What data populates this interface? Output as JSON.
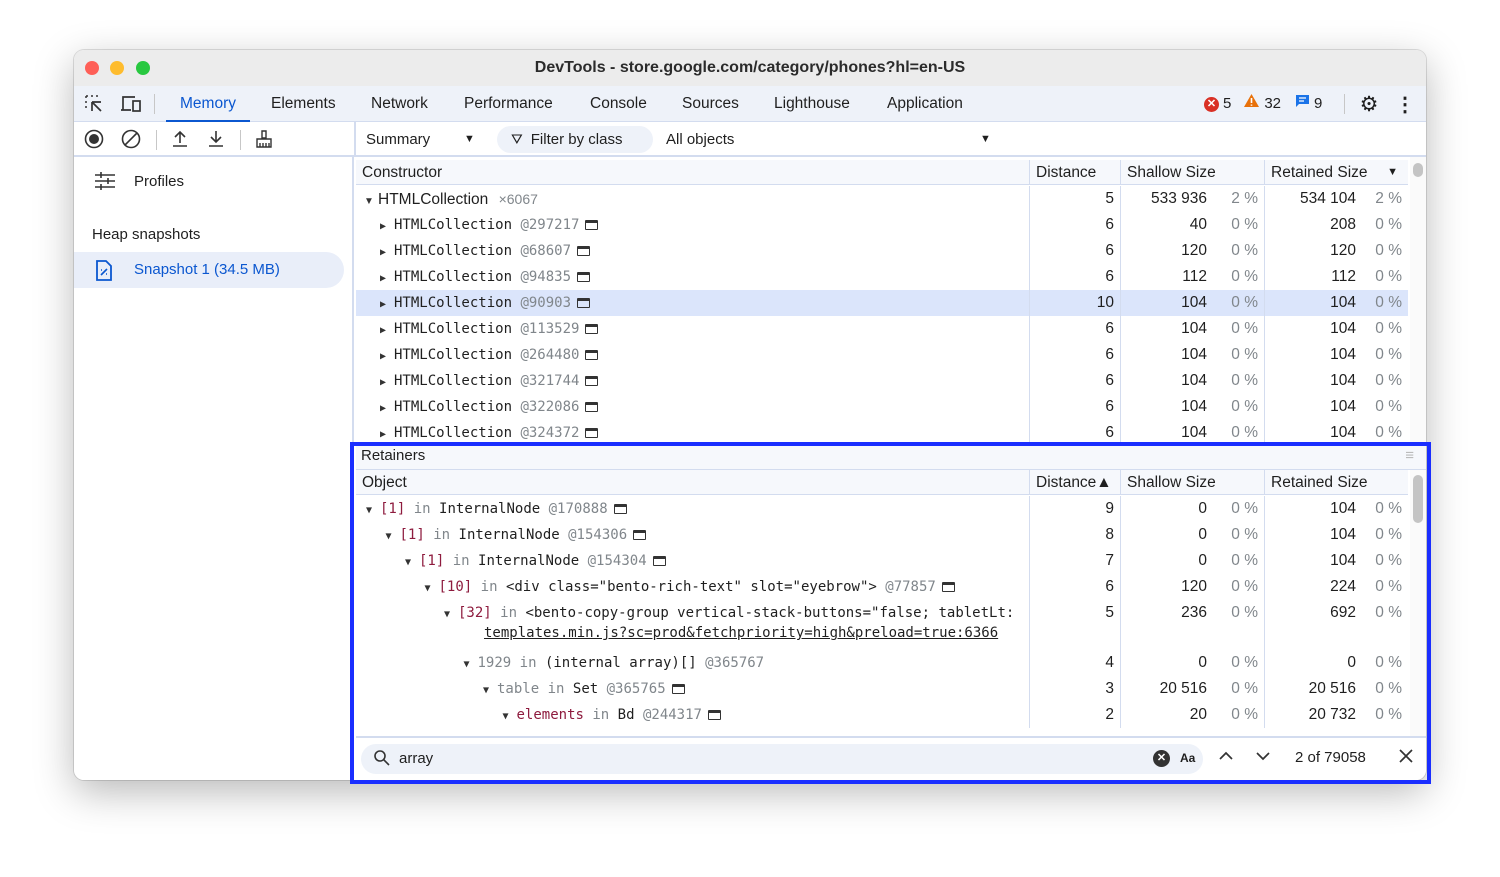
{
  "window": {
    "title": "DevTools - store.google.com/category/phones?hl=en-US"
  },
  "tabs": [
    "Memory",
    "Elements",
    "Network",
    "Performance",
    "Console",
    "Sources",
    "Lighthouse",
    "Application"
  ],
  "status": {
    "errors": "5",
    "warnings": "32",
    "messages": "9"
  },
  "toolbar": {
    "view": "Summary",
    "filter_placeholder": "Filter by class",
    "objects": "All objects"
  },
  "sidebar": {
    "profiles": "Profiles",
    "section": "Heap snapshots",
    "snapshot": "Snapshot 1 (34.5 MB)"
  },
  "summary": {
    "headers": {
      "constructor": "Constructor",
      "distance": "Distance",
      "shallow": "Shallow Size",
      "retained": "Retained Size"
    },
    "group": {
      "name": "HTMLCollection",
      "count": "×6067",
      "distance": "5",
      "shallow": "533 936",
      "shallow_pct": "2 %",
      "retained": "534 104",
      "retained_pct": "2 %"
    },
    "rows": [
      {
        "name": "HTMLCollection",
        "id": "@297217",
        "distance": "6",
        "shallow": "40",
        "shallow_pct": "0 %",
        "retained": "208",
        "retained_pct": "0 %"
      },
      {
        "name": "HTMLCollection",
        "id": "@68607",
        "distance": "6",
        "shallow": "120",
        "shallow_pct": "0 %",
        "retained": "120",
        "retained_pct": "0 %"
      },
      {
        "name": "HTMLCollection",
        "id": "@94835",
        "distance": "6",
        "shallow": "112",
        "shallow_pct": "0 %",
        "retained": "112",
        "retained_pct": "0 %"
      },
      {
        "name": "HTMLCollection",
        "id": "@90903",
        "distance": "10",
        "shallow": "104",
        "shallow_pct": "0 %",
        "retained": "104",
        "retained_pct": "0 %",
        "selected": true
      },
      {
        "name": "HTMLCollection",
        "id": "@113529",
        "distance": "6",
        "shallow": "104",
        "shallow_pct": "0 %",
        "retained": "104",
        "retained_pct": "0 %"
      },
      {
        "name": "HTMLCollection",
        "id": "@264480",
        "distance": "6",
        "shallow": "104",
        "shallow_pct": "0 %",
        "retained": "104",
        "retained_pct": "0 %"
      },
      {
        "name": "HTMLCollection",
        "id": "@321744",
        "distance": "6",
        "shallow": "104",
        "shallow_pct": "0 %",
        "retained": "104",
        "retained_pct": "0 %"
      },
      {
        "name": "HTMLCollection",
        "id": "@322086",
        "distance": "6",
        "shallow": "104",
        "shallow_pct": "0 %",
        "retained": "104",
        "retained_pct": "0 %"
      },
      {
        "name": "HTMLCollection",
        "id": "@324372",
        "distance": "6",
        "shallow": "104",
        "shallow_pct": "0 %",
        "retained": "104",
        "retained_pct": "0 %"
      }
    ]
  },
  "retainers": {
    "title": "Retainers",
    "headers": {
      "object": "Object",
      "distance": "Distance▲",
      "shallow": "Shallow Size",
      "retained": "Retained Size"
    },
    "rows": [
      {
        "level": 0,
        "prop": "[1]",
        "propStyle": "prop",
        "in": "in",
        "name": "InternalNode",
        "id": "@170888",
        "icon": true,
        "distance": "9",
        "shallow": "0",
        "shallow_pct": "0 %",
        "retained": "104",
        "retained_pct": "0 %"
      },
      {
        "level": 1,
        "prop": "[1]",
        "propStyle": "prop",
        "in": "in",
        "name": "InternalNode",
        "id": "@154306",
        "icon": true,
        "distance": "8",
        "shallow": "0",
        "shallow_pct": "0 %",
        "retained": "104",
        "retained_pct": "0 %"
      },
      {
        "level": 2,
        "prop": "[1]",
        "propStyle": "prop",
        "in": "in",
        "name": "InternalNode",
        "id": "@154304",
        "icon": true,
        "distance": "7",
        "shallow": "0",
        "shallow_pct": "0 %",
        "retained": "104",
        "retained_pct": "0 %"
      },
      {
        "level": 3,
        "prop": "[10]",
        "propStyle": "prop",
        "in": "in",
        "name": "<div class=\"bento-rich-text\" slot=\"eyebrow\">",
        "id": "@77857",
        "icon": true,
        "distance": "6",
        "shallow": "120",
        "shallow_pct": "0 %",
        "retained": "224",
        "retained_pct": "0 %"
      },
      {
        "level": 4,
        "prop": "[32]",
        "propStyle": "prop",
        "in": "in",
        "name": "<bento-copy-group vertical-stack-buttons=\"false; tabletLt:",
        "id": "",
        "icon": false,
        "link": "templates.min.js?sc=prod&fetchpriority=high&preload=true:6366",
        "distance": "5",
        "shallow": "236",
        "shallow_pct": "0 %",
        "retained": "692",
        "retained_pct": "0 %"
      },
      {
        "level": 5,
        "prop": "1929",
        "propStyle": "gray",
        "in": "in",
        "name": "(internal array)[]",
        "id": "@365767",
        "icon": false,
        "distance": "4",
        "shallow": "0",
        "shallow_pct": "0 %",
        "retained": "0",
        "retained_pct": "0 %"
      },
      {
        "level": 6,
        "prop": "table",
        "propStyle": "gray",
        "in": "in",
        "name": "Set",
        "id": "@365765",
        "icon": true,
        "distance": "3",
        "shallow": "20 516",
        "shallow_pct": "0 %",
        "retained": "20 516",
        "retained_pct": "0 %"
      },
      {
        "level": 7,
        "prop": "elements",
        "propStyle": "prop",
        "in": "in",
        "name": "Bd",
        "id": "@244317",
        "icon": true,
        "distance": "2",
        "shallow": "20",
        "shallow_pct": "0 %",
        "retained": "20 732",
        "retained_pct": "0 %"
      }
    ]
  },
  "search": {
    "value": "array",
    "case_label": "Aa",
    "count": "2 of 79058"
  },
  "colors": {
    "accent": "#0b57d0",
    "highlight": "#1a2eff",
    "selected_row": "#dbe5fb"
  }
}
